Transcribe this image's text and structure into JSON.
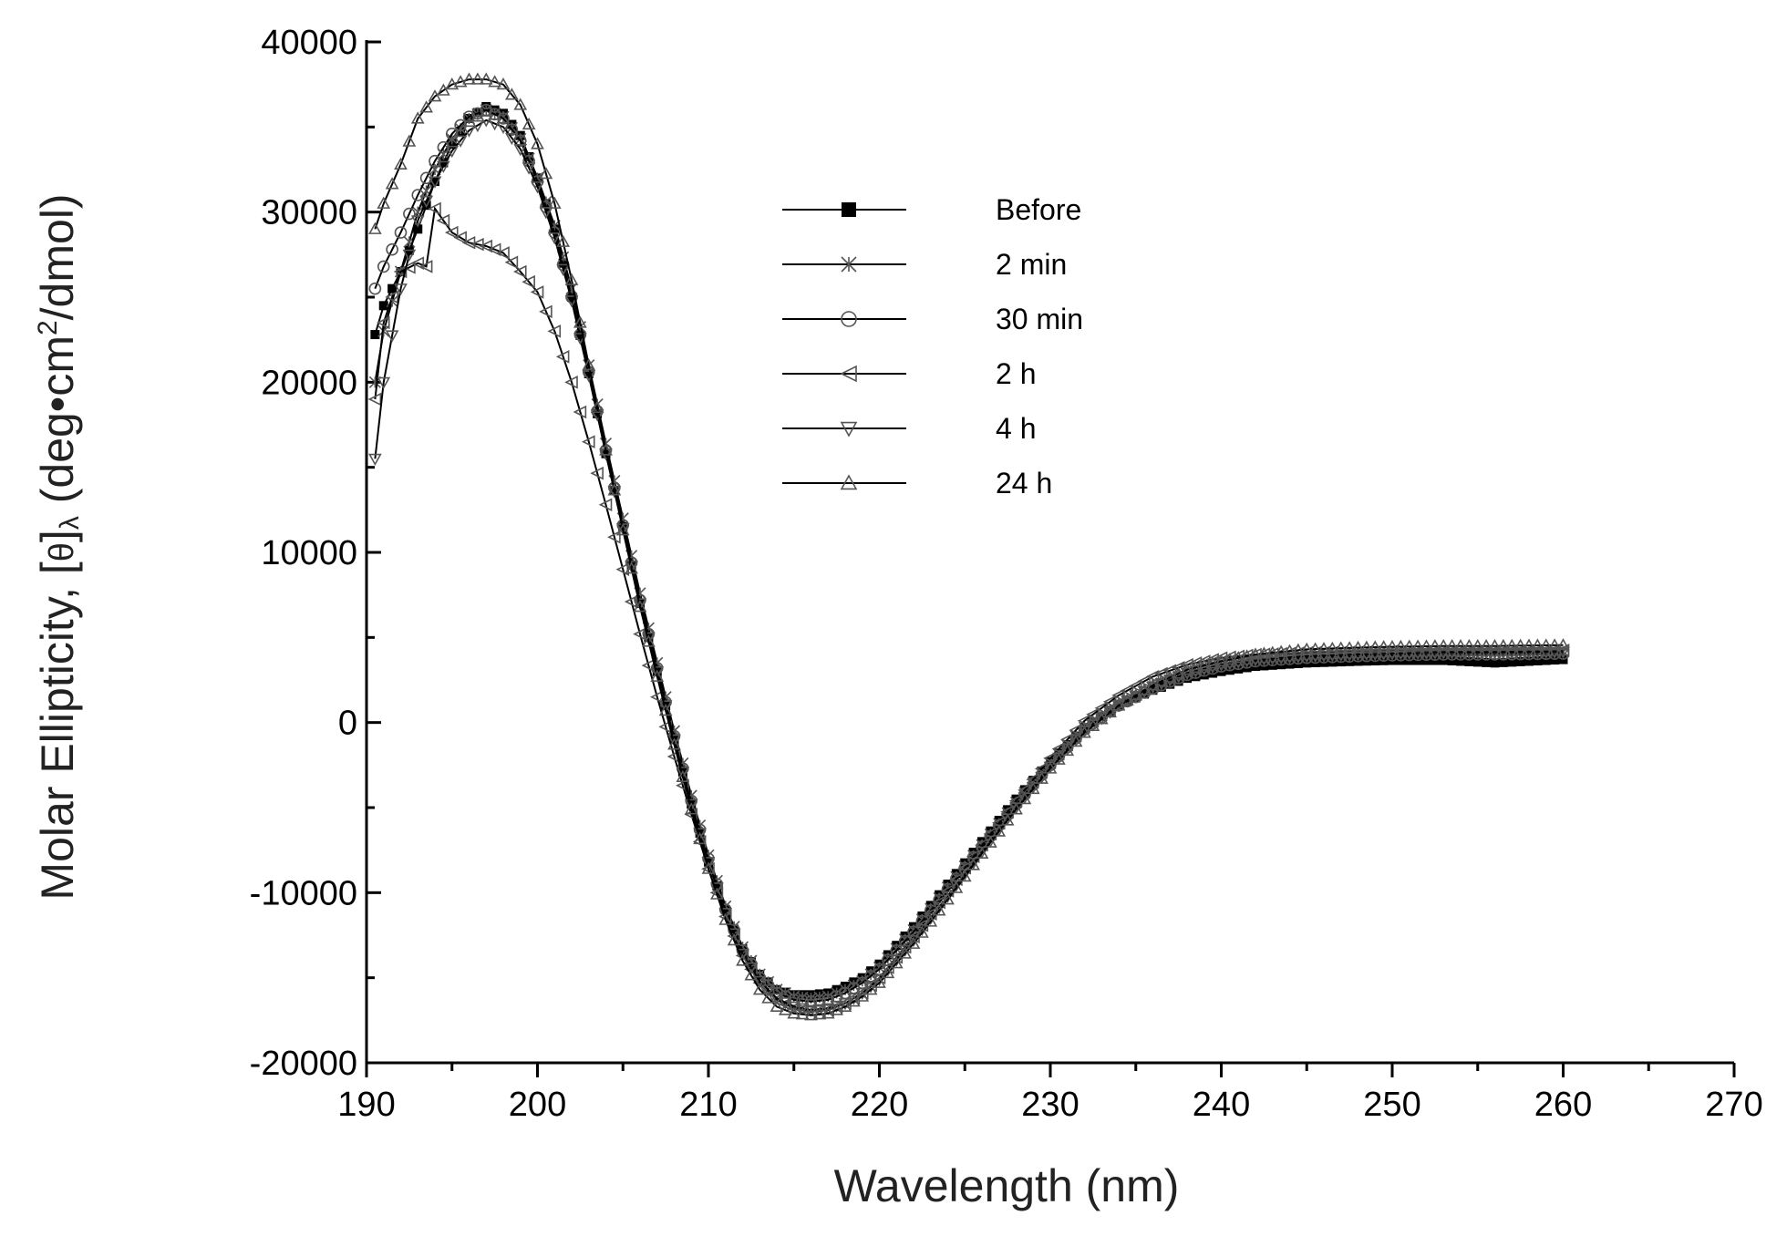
{
  "chart_data": {
    "type": "line",
    "title": "",
    "xlabel": "Wavelength (nm)",
    "ylabel": {
      "prefix": "Molar Ellipticity, [",
      "theta": "θ",
      "bracket_close": "]",
      "lambda": "λ",
      "unit_start": " (deg•cm",
      "unit_sup": "2",
      "unit_end": "/dmol)"
    },
    "xlim": [
      190,
      270
    ],
    "ylim": [
      -20000,
      40000
    ],
    "xticks": [
      190,
      200,
      210,
      220,
      230,
      240,
      250,
      260,
      270
    ],
    "yticks": [
      -20000,
      -10000,
      0,
      10000,
      20000,
      30000,
      40000
    ],
    "legend_position": "upper-middle",
    "series": [
      {
        "name": "Before",
        "marker": "filled-square",
        "color": "#000000",
        "x": [
          190.5,
          191,
          192,
          193,
          194,
          195,
          196,
          197,
          198,
          199,
          200,
          201,
          202,
          203,
          204,
          205,
          206,
          207,
          208,
          209,
          210,
          211,
          212,
          213,
          214,
          215,
          216,
          217,
          218,
          219,
          220,
          222,
          224,
          226,
          228,
          230,
          232,
          234,
          236,
          238,
          240,
          242,
          245,
          248,
          250,
          253,
          256,
          260
        ],
        "y": [
          22800,
          24500,
          26500,
          29000,
          31800,
          34000,
          35500,
          36200,
          35800,
          34500,
          32000,
          29000,
          25000,
          20500,
          15800,
          11500,
          7000,
          3000,
          -1000,
          -4800,
          -8200,
          -11000,
          -13300,
          -14800,
          -15700,
          -16000,
          -16000,
          -15900,
          -15500,
          -15000,
          -14200,
          -12000,
          -9500,
          -7000,
          -4500,
          -2300,
          -300,
          1000,
          1900,
          2600,
          3000,
          3300,
          3500,
          3600,
          3650,
          3650,
          3500,
          3700
        ]
      },
      {
        "name": "2 min",
        "marker": "cross-x",
        "color": "#000000",
        "x": [
          190.5,
          191,
          192,
          193,
          194,
          195,
          196,
          197,
          198,
          199,
          200,
          201,
          202,
          203,
          204,
          205,
          206,
          207,
          208,
          209,
          210,
          211,
          212,
          213,
          214,
          215,
          216,
          217,
          218,
          219,
          220,
          222,
          224,
          226,
          228,
          230,
          232,
          234,
          236,
          238,
          240,
          242,
          245,
          248,
          250,
          253,
          256,
          260
        ],
        "y": [
          20000,
          23000,
          26500,
          30000,
          32500,
          34300,
          35500,
          36000,
          35600,
          34300,
          32000,
          29200,
          25500,
          21000,
          16400,
          12000,
          7600,
          3500,
          -500,
          -4300,
          -7800,
          -10800,
          -13200,
          -14800,
          -15700,
          -16100,
          -16200,
          -16100,
          -15700,
          -15200,
          -14400,
          -12200,
          -9700,
          -7200,
          -4700,
          -2400,
          -300,
          1100,
          2100,
          2900,
          3400,
          3700,
          3900,
          4000,
          4050,
          4100,
          4100,
          4150
        ]
      },
      {
        "name": "30 min",
        "marker": "open-circle",
        "color": "#000000",
        "x": [
          190.5,
          191,
          192,
          193,
          194,
          195,
          196,
          197,
          198,
          199,
          200,
          201,
          202,
          203,
          204,
          205,
          206,
          207,
          208,
          209,
          210,
          211,
          212,
          213,
          214,
          215,
          216,
          217,
          218,
          219,
          220,
          222,
          224,
          226,
          228,
          230,
          232,
          234,
          236,
          238,
          240,
          242,
          245,
          248,
          250,
          253,
          256,
          260
        ],
        "y": [
          25500,
          26800,
          28800,
          31000,
          33000,
          34600,
          35600,
          36000,
          35500,
          34200,
          31800,
          28800,
          25000,
          20600,
          16000,
          11600,
          7200,
          3200,
          -800,
          -4600,
          -8000,
          -11000,
          -13400,
          -15000,
          -15900,
          -16300,
          -16400,
          -16300,
          -15900,
          -15300,
          -14500,
          -12300,
          -9800,
          -7300,
          -4800,
          -2500,
          -400,
          1000,
          2000,
          2800,
          3300,
          3600,
          3800,
          3900,
          3950,
          4000,
          4000,
          4050
        ]
      },
      {
        "name": "2 h",
        "marker": "left-triangle",
        "color": "#000000",
        "x": [
          190.5,
          191,
          192,
          193,
          193.5,
          194,
          195,
          196,
          197,
          198,
          199,
          200,
          201,
          202,
          203,
          204,
          205,
          206,
          207,
          208,
          209,
          210,
          211,
          212,
          213,
          214,
          215,
          216,
          217,
          218,
          219,
          220,
          222,
          224,
          226,
          228,
          230,
          232,
          234,
          236,
          238,
          240,
          242,
          245,
          248,
          250,
          253,
          256,
          260
        ],
        "y": [
          19000,
          23500,
          26500,
          27000,
          26800,
          30200,
          28800,
          28200,
          28000,
          27600,
          26500,
          25300,
          23000,
          20000,
          16500,
          12800,
          9000,
          5200,
          1500,
          -2000,
          -5400,
          -8600,
          -11400,
          -13700,
          -15300,
          -16300,
          -16800,
          -17000,
          -16900,
          -16500,
          -15900,
          -15000,
          -12600,
          -9900,
          -7200,
          -4600,
          -2100,
          100,
          1600,
          2700,
          3400,
          3800,
          4000,
          4100,
          4150,
          4200,
          4200,
          4200,
          4250
        ]
      },
      {
        "name": "4 h",
        "marker": "down-triangle",
        "color": "#000000",
        "x": [
          190.5,
          191,
          192,
          193,
          194,
          195,
          196,
          197,
          198,
          199,
          200,
          201,
          202,
          203,
          204,
          205,
          206,
          207,
          208,
          209,
          210,
          211,
          212,
          213,
          214,
          215,
          216,
          217,
          218,
          219,
          220,
          222,
          224,
          226,
          228,
          230,
          232,
          234,
          236,
          238,
          240,
          242,
          245,
          248,
          250,
          253,
          256,
          260
        ],
        "y": [
          15500,
          20000,
          25500,
          29500,
          31800,
          33600,
          34800,
          35400,
          35000,
          33700,
          31500,
          28500,
          24800,
          20400,
          15800,
          11400,
          7000,
          3000,
          -1000,
          -4800,
          -8200,
          -11200,
          -13600,
          -15200,
          -16200,
          -16700,
          -16900,
          -16800,
          -16500,
          -15900,
          -15100,
          -12800,
          -10200,
          -7600,
          -5000,
          -2600,
          -500,
          1000,
          2100,
          2900,
          3400,
          3700,
          3900,
          4000,
          4050,
          4100,
          4100,
          4150
        ]
      },
      {
        "name": "24 h",
        "marker": "up-triangle",
        "color": "#000000",
        "x": [
          190.5,
          191,
          192,
          193,
          194,
          195,
          196,
          197,
          198,
          199,
          200,
          201,
          202,
          203,
          204,
          205,
          206,
          207,
          208,
          209,
          210,
          211,
          212,
          213,
          214,
          215,
          216,
          217,
          218,
          219,
          220,
          222,
          224,
          226,
          228,
          230,
          232,
          234,
          236,
          238,
          240,
          242,
          245,
          248,
          250,
          253,
          256,
          260
        ],
        "y": [
          29000,
          30500,
          32800,
          35500,
          36800,
          37500,
          37800,
          37800,
          37500,
          36300,
          34000,
          30500,
          26000,
          21000,
          16000,
          11300,
          6800,
          2700,
          -1300,
          -5100,
          -8600,
          -11600,
          -14000,
          -15700,
          -16700,
          -17100,
          -17200,
          -17100,
          -16700,
          -16100,
          -15300,
          -13000,
          -10400,
          -7700,
          -5100,
          -2700,
          -600,
          1000,
          2200,
          3100,
          3600,
          4000,
          4300,
          4400,
          4450,
          4500,
          4500,
          4550
        ]
      }
    ]
  }
}
